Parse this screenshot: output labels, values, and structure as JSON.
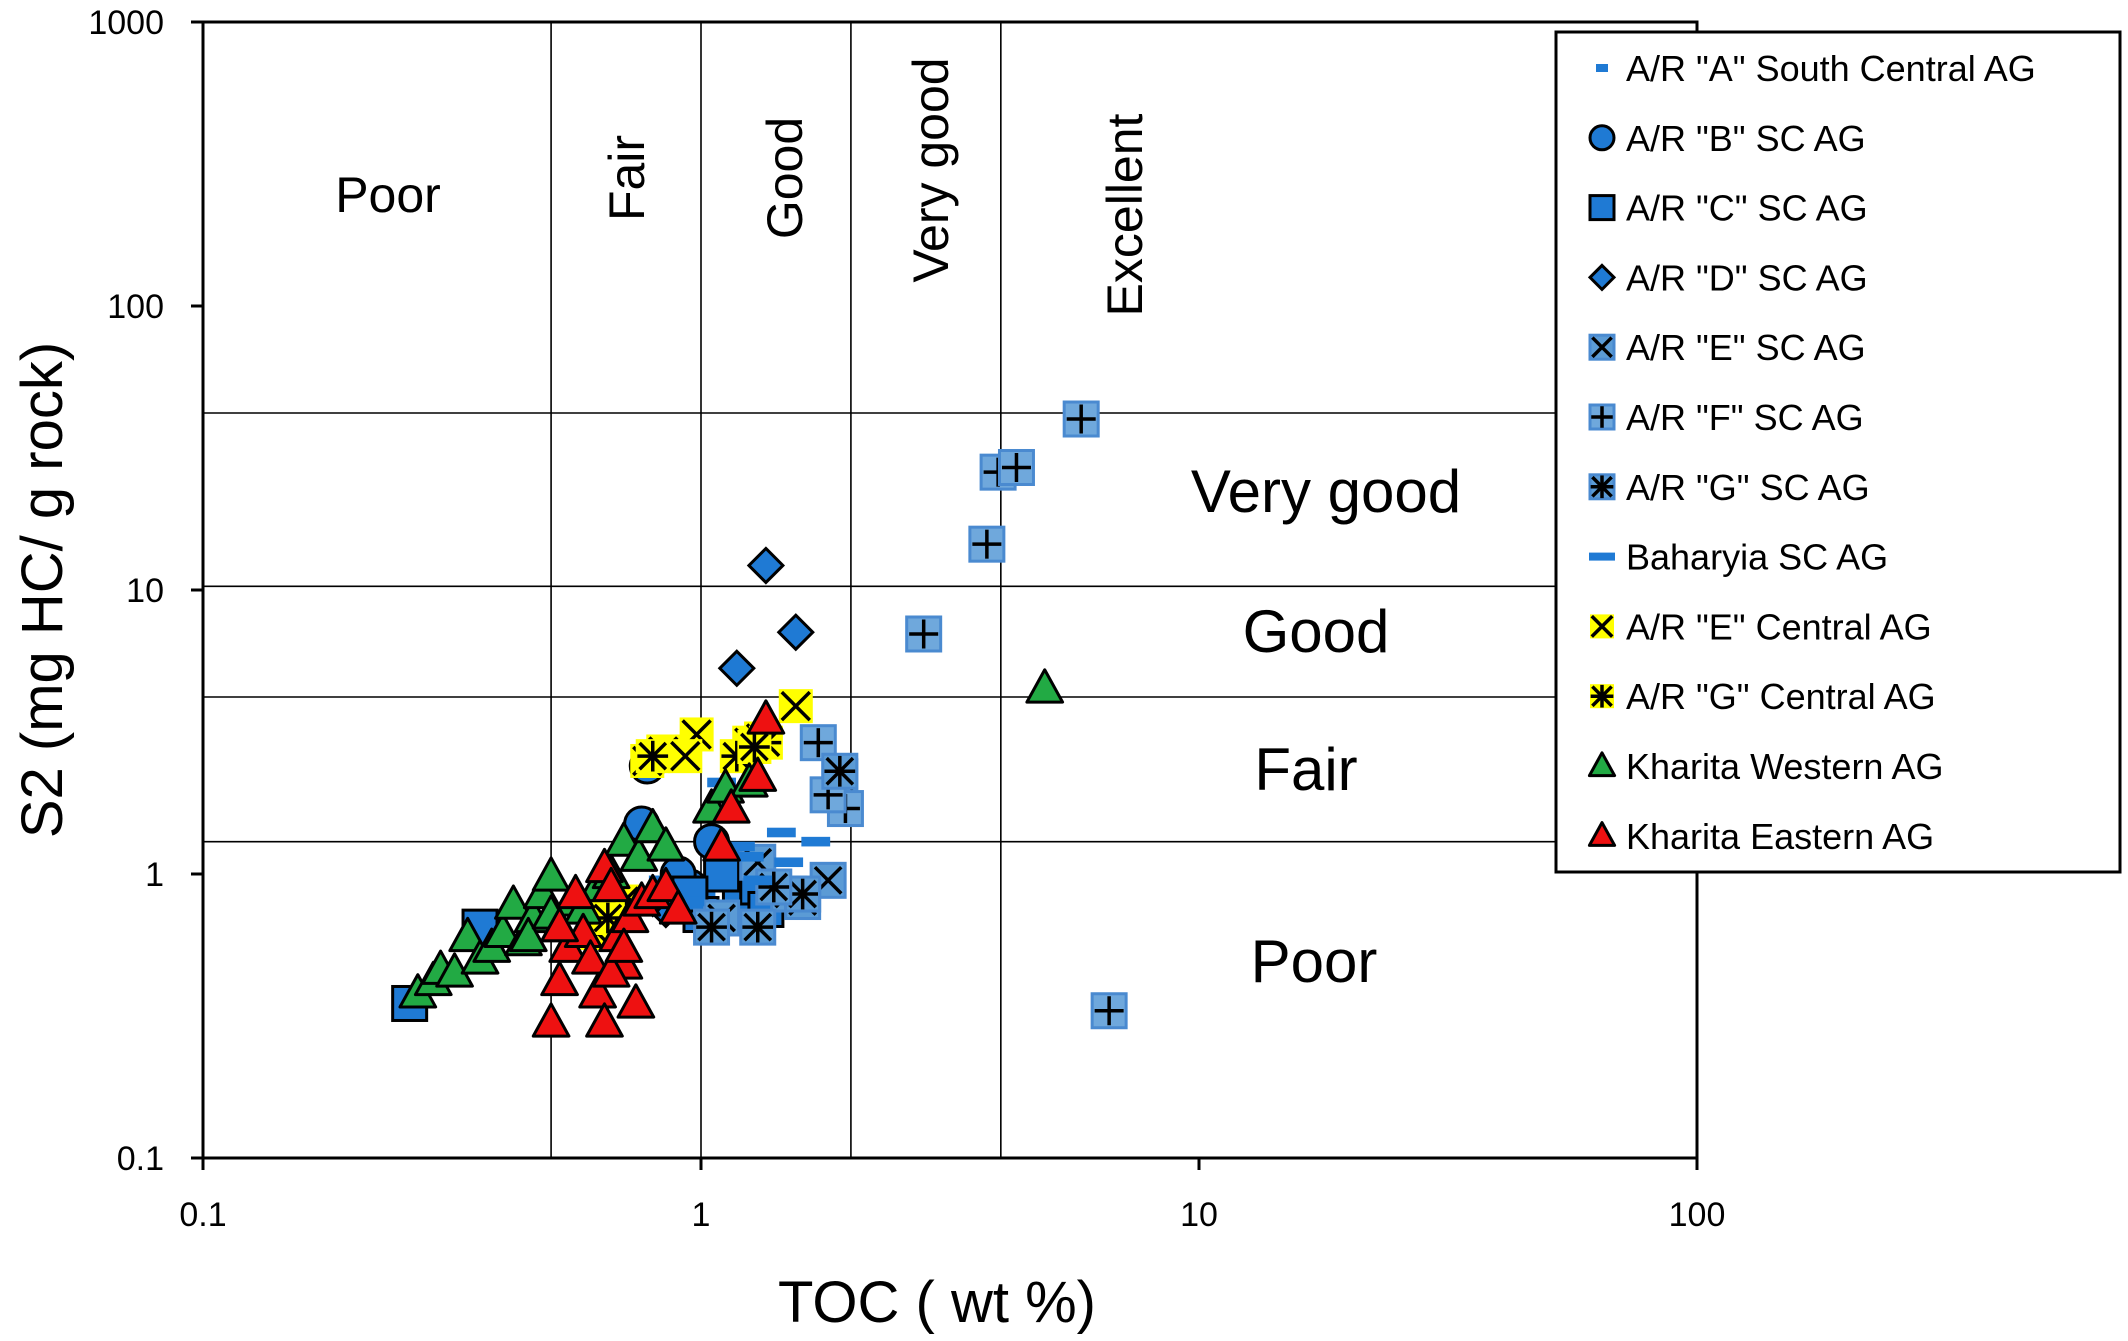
{
  "chart_data": {
    "type": "scatter",
    "title": "",
    "xlabel": "TOC ( wt %)",
    "ylabel": "S2 (mg HC/ g rock)",
    "xscale": "log",
    "yscale": "log",
    "xlim": [
      0.1,
      100
    ],
    "ylim": [
      0.1,
      1000
    ],
    "x_ticks": [
      "0.1",
      "1",
      "10",
      "100"
    ],
    "y_ticks": [
      "0.1",
      "1",
      "10",
      "100",
      "1000"
    ],
    "grid": false,
    "legend_position": "top-right",
    "toc_boundaries": [
      0.5,
      1,
      2,
      4
    ],
    "s2_boundaries": [
      1.3,
      4.2,
      10.3,
      42
    ],
    "toc_zone_labels": [
      "Poor",
      "Fair",
      "Good",
      "Very good",
      "Excellent"
    ],
    "s2_zone_labels": [
      "Poor",
      "Fair",
      "Good",
      "Very good"
    ],
    "series": [
      {
        "name": "A/R \"A\" South Central AG",
        "marker": "dash",
        "color": "#1f7ad4",
        "x": [
          0.84,
          1.0,
          1.1
        ],
        "y": [
          0.95,
          0.85,
          2.1
        ]
      },
      {
        "name": "A/R \"B\" SC AG",
        "marker": "circle",
        "color": "#1f7ad4",
        "x": [
          0.78,
          0.76,
          1.05,
          0.95,
          1.2,
          0.9
        ],
        "y": [
          2.4,
          1.5,
          1.3,
          0.9,
          1.1,
          1.0
        ]
      },
      {
        "name": "A/R \"C\" SC AG",
        "marker": "square",
        "color": "#1f7ad4",
        "x": [
          0.26,
          0.36,
          1.0,
          1.2,
          1.3,
          1.1,
          1.35,
          0.95
        ],
        "y": [
          0.35,
          0.65,
          0.72,
          0.8,
          0.9,
          1.0,
          0.75,
          0.85
        ]
      },
      {
        "name": "A/R \"D\" SC AG",
        "marker": "diamond",
        "color": "#1f7ad4",
        "x": [
          1.35,
          1.55,
          1.18,
          0.85,
          0.8
        ],
        "y": [
          12.2,
          7.1,
          5.3,
          0.75,
          0.82
        ]
      },
      {
        "name": "A/R \"E\" SC AG",
        "marker": "xbox",
        "color": "#5b9bd5",
        "x": [
          1.3,
          1.5,
          1.8,
          1.1,
          1.6,
          1.9
        ],
        "y": [
          1.1,
          0.85,
          0.95,
          0.7,
          0.8,
          2.2
        ]
      },
      {
        "name": "A/R \"F\" SC AG",
        "marker": "plusbox",
        "color": "#5b9bd5",
        "x": [
          5.8,
          3.95,
          4.3,
          3.75,
          2.8,
          6.6,
          1.72,
          1.95,
          1.8
        ],
        "y": [
          40.0,
          26.0,
          27.0,
          14.5,
          7.0,
          0.33,
          2.9,
          1.7,
          1.9
        ]
      },
      {
        "name": "A/R \"G\" SC AG",
        "marker": "starbox",
        "color": "#5b9bd5",
        "x": [
          1.9,
          1.3,
          1.05,
          1.6,
          1.4
        ],
        "y": [
          2.3,
          0.65,
          0.65,
          0.85,
          0.9
        ]
      },
      {
        "name": "Baharyia SC AG",
        "marker": "dash",
        "color": "#1f7ad4",
        "x": [
          1.2,
          1.5,
          1.7,
          1.3,
          1.45,
          0.95,
          1.25
        ],
        "y": [
          1.25,
          1.1,
          1.3,
          0.95,
          1.4,
          0.8,
          1.15
        ]
      },
      {
        "name": "A/R \"E\" Central AG",
        "marker": "xyellow",
        "color": "#ffff00",
        "x": [
          0.78,
          0.84,
          0.98,
          0.93,
          1.55,
          1.25,
          1.32,
          0.7,
          0.62
        ],
        "y": [
          2.5,
          2.7,
          3.1,
          2.6,
          3.9,
          2.9,
          3.0,
          0.8,
          0.62
        ]
      },
      {
        "name": "A/R \"G\" Central AG",
        "marker": "staryellow",
        "color": "#ffff00",
        "x": [
          0.8,
          1.35,
          1.18,
          1.28,
          0.65
        ],
        "y": [
          2.6,
          2.9,
          2.6,
          2.8,
          0.7
        ]
      },
      {
        "name": "Kharita Western AG",
        "marker": "triangle",
        "color": "#22aa44",
        "x": [
          0.27,
          0.29,
          0.3,
          0.32,
          0.34,
          0.36,
          0.38,
          0.4,
          0.42,
          0.44,
          0.46,
          0.48,
          0.5,
          0.52,
          0.55,
          0.58,
          0.62,
          0.66,
          0.7,
          0.75,
          0.8,
          0.85,
          1.05,
          1.12,
          1.25,
          4.9,
          0.45,
          0.5
        ],
        "y": [
          0.38,
          0.42,
          0.46,
          0.45,
          0.6,
          0.5,
          0.55,
          0.62,
          0.78,
          0.58,
          0.7,
          0.85,
          0.98,
          0.65,
          0.8,
          0.75,
          0.9,
          1.0,
          1.3,
          1.15,
          1.45,
          1.25,
          1.7,
          2.0,
          2.1,
          4.5,
          0.6,
          0.72
        ]
      },
      {
        "name": "Kharita Eastern AG",
        "marker": "triangle",
        "color": "#ee1111",
        "x": [
          0.5,
          0.52,
          0.54,
          0.56,
          0.58,
          0.6,
          0.62,
          0.64,
          0.66,
          0.68,
          0.7,
          0.72,
          0.74,
          0.76,
          0.8,
          0.85,
          0.9,
          1.1,
          1.15,
          1.3,
          1.35,
          0.52,
          0.64,
          0.66,
          0.7
        ],
        "y": [
          0.3,
          0.42,
          0.55,
          0.85,
          0.62,
          0.5,
          0.38,
          1.05,
          0.9,
          0.6,
          0.48,
          0.7,
          0.35,
          0.8,
          0.85,
          0.9,
          0.75,
          1.25,
          1.7,
          2.2,
          3.5,
          0.65,
          0.3,
          0.45,
          0.55
        ]
      }
    ]
  }
}
